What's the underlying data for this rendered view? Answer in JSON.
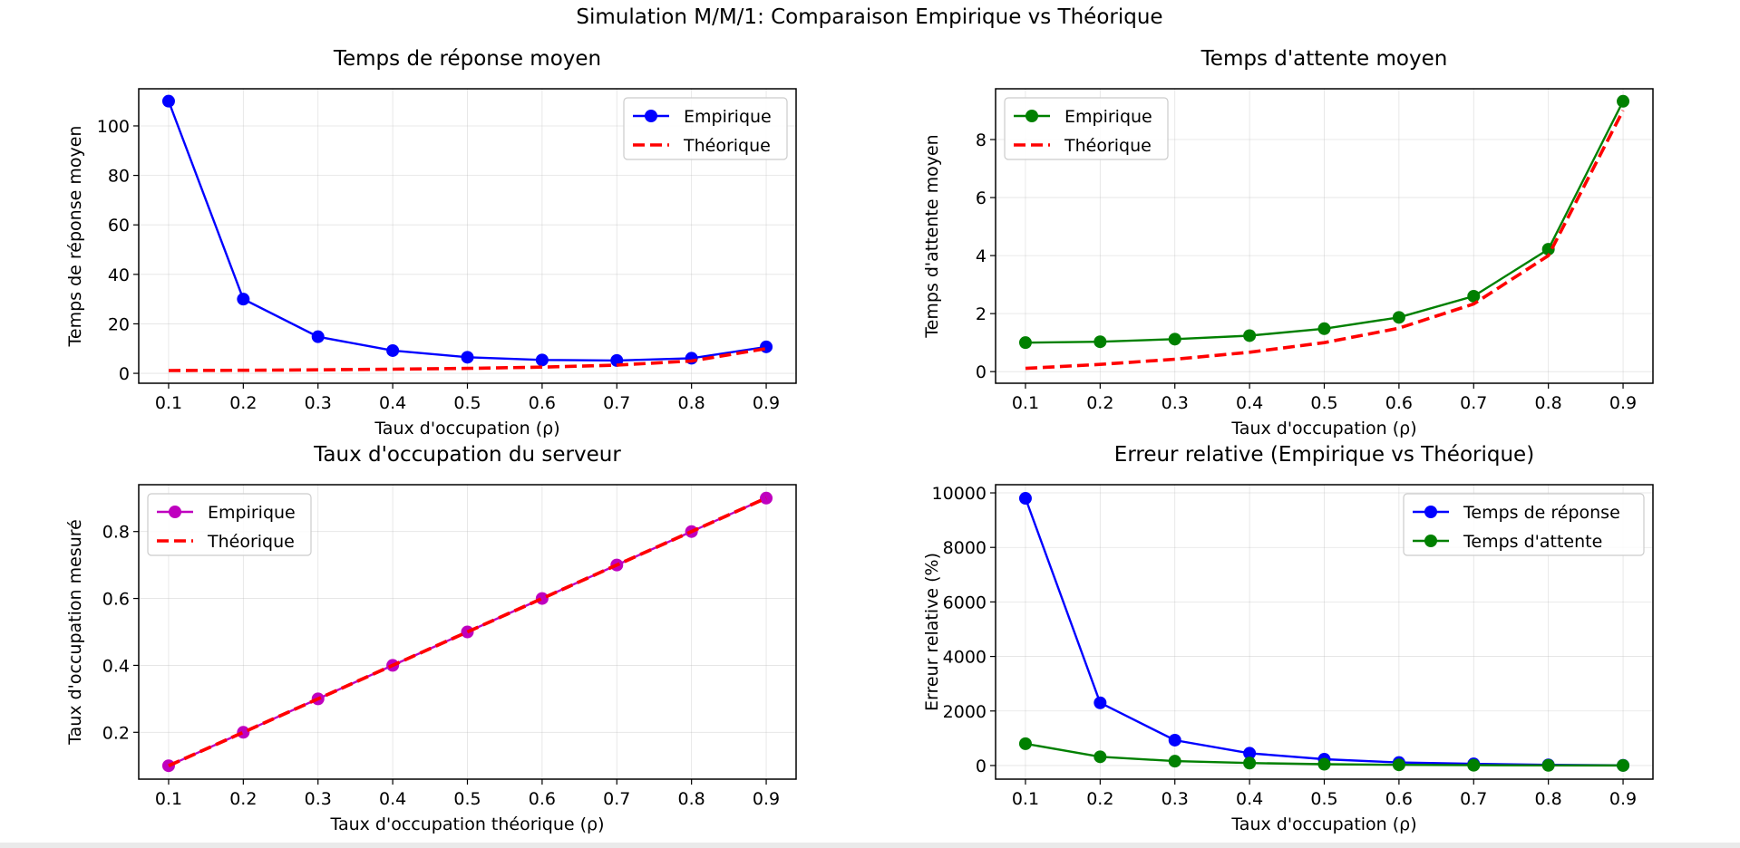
{
  "figure": {
    "suptitle": "Simulation M/M/1: Comparaison Empirique vs Théorique"
  },
  "colors": {
    "blue": "#0000ff",
    "green": "#008000",
    "magenta": "#bf00bf",
    "red": "#ff0000",
    "grid": "#b0b0b0"
  },
  "chart_data": [
    {
      "id": "response",
      "type": "line",
      "title": "Temps de réponse moyen",
      "xlabel": "Taux d'occupation (ρ)",
      "ylabel": "Temps de réponse moyen",
      "x": [
        0.1,
        0.2,
        0.3,
        0.4,
        0.5,
        0.6,
        0.7,
        0.8,
        0.9
      ],
      "xticks": [
        "0.1",
        "0.2",
        "0.3",
        "0.4",
        "0.5",
        "0.6",
        "0.7",
        "0.8",
        "0.9"
      ],
      "xlim": [
        0.06,
        0.94
      ],
      "ylim": [
        -4,
        115
      ],
      "yticks": [
        0,
        20,
        40,
        60,
        80,
        100
      ],
      "ytick_labels": [
        "0",
        "20",
        "40",
        "60",
        "80",
        "100"
      ],
      "grid": true,
      "legend_position": "upper right",
      "series": [
        {
          "name": "Empirique",
          "style": "solid-marker",
          "color": "#0000ff",
          "values": [
            110.0,
            30.0,
            14.8,
            9.2,
            6.5,
            5.4,
            5.2,
            6.1,
            10.7
          ]
        },
        {
          "name": "Théorique",
          "style": "dashed",
          "color": "#ff0000",
          "values": [
            1.11,
            1.25,
            1.43,
            1.67,
            2.0,
            2.5,
            3.33,
            5.0,
            10.0
          ]
        }
      ]
    },
    {
      "id": "waiting",
      "type": "line",
      "title": "Temps d'attente moyen",
      "xlabel": "Taux d'occupation (ρ)",
      "ylabel": "Temps d'attente moyen",
      "x": [
        0.1,
        0.2,
        0.3,
        0.4,
        0.5,
        0.6,
        0.7,
        0.8,
        0.9
      ],
      "xticks": [
        "0.1",
        "0.2",
        "0.3",
        "0.4",
        "0.5",
        "0.6",
        "0.7",
        "0.8",
        "0.9"
      ],
      "xlim": [
        0.06,
        0.94
      ],
      "ylim": [
        -0.4,
        9.75
      ],
      "yticks": [
        0,
        2,
        4,
        6,
        8
      ],
      "ytick_labels": [
        "0",
        "2",
        "4",
        "6",
        "8"
      ],
      "grid": true,
      "legend_position": "upper left",
      "series": [
        {
          "name": "Empirique",
          "style": "solid-marker",
          "color": "#008000",
          "values": [
            1.0,
            1.03,
            1.12,
            1.24,
            1.48,
            1.87,
            2.6,
            4.22,
            9.32
          ]
        },
        {
          "name": "Théorique",
          "style": "dashed",
          "color": "#ff0000",
          "values": [
            0.111,
            0.25,
            0.429,
            0.667,
            1.0,
            1.5,
            2.333,
            4.0,
            9.0
          ]
        }
      ]
    },
    {
      "id": "occupancy",
      "type": "line",
      "title": "Taux d'occupation du serveur",
      "xlabel": "Taux d'occupation théorique (ρ)",
      "ylabel": "Taux d'occupation mesuré",
      "x": [
        0.1,
        0.2,
        0.3,
        0.4,
        0.5,
        0.6,
        0.7,
        0.8,
        0.9
      ],
      "xticks": [
        "0.1",
        "0.2",
        "0.3",
        "0.4",
        "0.5",
        "0.6",
        "0.7",
        "0.8",
        "0.9"
      ],
      "xlim": [
        0.06,
        0.94
      ],
      "ylim": [
        0.06,
        0.94
      ],
      "yticks": [
        0.2,
        0.4,
        0.6,
        0.8
      ],
      "ytick_labels": [
        "0.2",
        "0.4",
        "0.6",
        "0.8"
      ],
      "grid": true,
      "legend_position": "upper left",
      "series": [
        {
          "name": "Empirique",
          "style": "solid-marker",
          "color": "#bf00bf",
          "values": [
            0.1,
            0.2,
            0.3,
            0.4,
            0.5,
            0.6,
            0.7,
            0.8,
            0.9
          ]
        },
        {
          "name": "Théorique",
          "style": "dashed",
          "color": "#ff0000",
          "values": [
            0.1,
            0.2,
            0.3,
            0.4,
            0.5,
            0.6,
            0.7,
            0.8,
            0.9
          ]
        }
      ]
    },
    {
      "id": "relerror",
      "type": "line",
      "title": "Erreur relative (Empirique vs Théorique)",
      "xlabel": "Taux d'occupation (ρ)",
      "ylabel": "Erreur relative (%)",
      "x": [
        0.1,
        0.2,
        0.3,
        0.4,
        0.5,
        0.6,
        0.7,
        0.8,
        0.9
      ],
      "xticks": [
        "0.1",
        "0.2",
        "0.3",
        "0.4",
        "0.5",
        "0.6",
        "0.7",
        "0.8",
        "0.9"
      ],
      "xlim": [
        0.06,
        0.94
      ],
      "ylim": [
        -500,
        10300
      ],
      "yticks": [
        0,
        2000,
        4000,
        6000,
        8000,
        10000
      ],
      "ytick_labels": [
        "0",
        "2000",
        "4000",
        "6000",
        "8000",
        "10000"
      ],
      "grid": true,
      "legend_position": "upper right",
      "series": [
        {
          "name": "Temps de réponse",
          "style": "solid-marker",
          "color": "#0000ff",
          "values": [
            9800,
            2300,
            930,
            450,
            230,
            110,
            60,
            25,
            5
          ]
        },
        {
          "name": "Temps d'attente",
          "style": "solid-marker",
          "color": "#008000",
          "values": [
            800,
            320,
            160,
            90,
            48,
            24,
            11,
            5,
            3
          ]
        }
      ]
    }
  ]
}
